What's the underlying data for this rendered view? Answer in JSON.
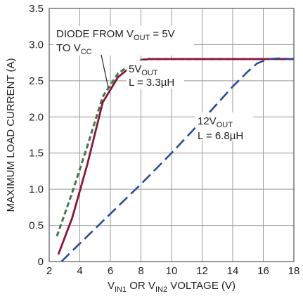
{
  "chart_data": {
    "type": "line",
    "xlabel": {
      "prefix": "V",
      "sub1": "IN1",
      "mid": " OR V",
      "sub2": "IN2",
      "suffix": " VOLTAGE (V)"
    },
    "ylabel": "MAXIMUM LOAD CURRENT (A)",
    "xlim": [
      2,
      18
    ],
    "ylim": [
      0,
      3.5
    ],
    "xticks": [
      "2",
      "4",
      "6",
      "8",
      "10",
      "12",
      "14",
      "16",
      "18"
    ],
    "yticks": [
      "0",
      "0.5",
      "1.0",
      "1.5",
      "2.0",
      "2.5",
      "3.0",
      "3.5"
    ],
    "grid": true,
    "series": [
      {
        "key": "diode",
        "color": "#3d7a4a",
        "dash": "dashed",
        "x": [
          2.5,
          3.5,
          4.5,
          5.5,
          6.5,
          7.5,
          8.0,
          8.5,
          18.0
        ],
        "y": [
          0.35,
          0.95,
          1.6,
          2.28,
          2.6,
          2.75,
          2.79,
          2.8,
          2.8
        ]
      },
      {
        "key": "5vout",
        "color": "#8b1538",
        "dash": "solid",
        "x": [
          2.6,
          3.5,
          4.5,
          5.5,
          6.5,
          7.5,
          8.0,
          8.5,
          18.0
        ],
        "y": [
          0.1,
          0.6,
          1.35,
          2.2,
          2.55,
          2.72,
          2.78,
          2.8,
          2.8
        ]
      },
      {
        "key": "12vout",
        "color": "#2e4a9c",
        "dash": "longdash",
        "x": [
          2.8,
          4.0,
          6.0,
          8.0,
          10.0,
          12.0,
          14.0,
          15.0,
          15.6,
          16.3,
          17.0,
          18.0
        ],
        "y": [
          0.0,
          0.25,
          0.66,
          1.07,
          1.5,
          1.95,
          2.42,
          2.63,
          2.74,
          2.8,
          2.81,
          2.8
        ]
      }
    ],
    "annotations": {
      "diode": {
        "line1_prefix": "DIODE FROM V",
        "line1_sub": "OUT",
        "line1_suffix": " = 5V",
        "line2_prefix": "TO V",
        "line2_sub": "CC"
      },
      "five": {
        "line1_prefix": "5V",
        "line1_sub": "OUT",
        "line2": "L = 3.3µH"
      },
      "twelve": {
        "line1_prefix": "12V",
        "line1_sub": "OUT",
        "line2": "L = 6.8µH"
      }
    }
  }
}
